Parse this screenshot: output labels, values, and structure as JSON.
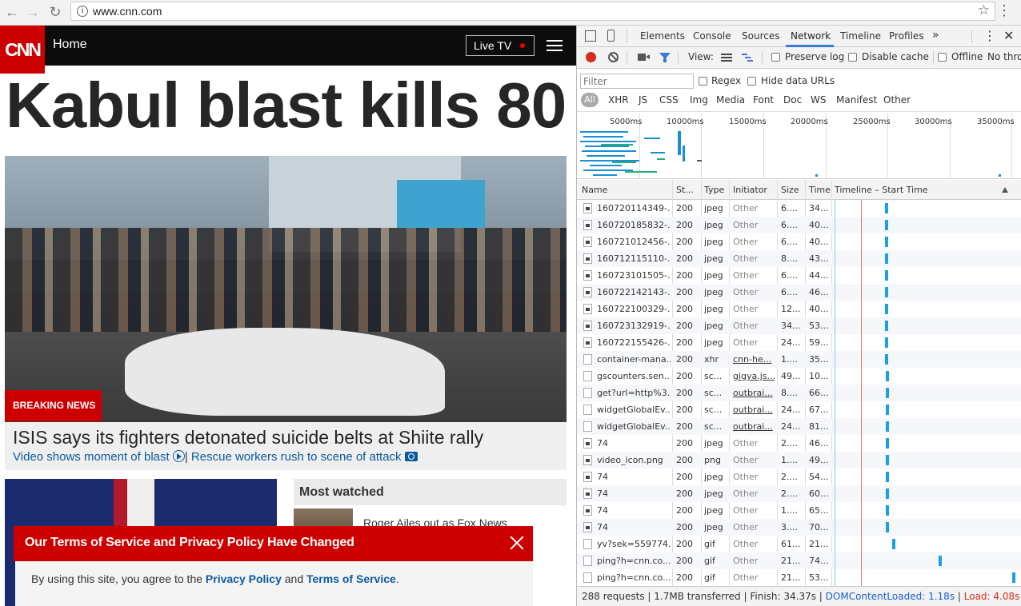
{
  "browser": {
    "url": "www.cnn.com",
    "icons": [
      "back-arrow-icon",
      "forward-arrow-icon",
      "reload-icon",
      "info-icon",
      "star-icon",
      "menu-dots-icon"
    ]
  },
  "cnn": {
    "logo": "CNN",
    "nav_home": "Home",
    "live_tv": "Live TV",
    "headline": "Kabul blast kills 80",
    "breaking_label": "BREAKING NEWS",
    "caption_title": "ISIS says its fighters detonated suicide belts at Shiite rally",
    "link_video": "Video shows moment of blast",
    "link_sep": "|",
    "link_rescue": "Rescue workers rush to scene of attack",
    "most_watched_title": "Most watched",
    "most_watched_story": "Roger Ailes out as Fox News",
    "tos_title": "Our Terms of Service and Privacy Policy Have Changed",
    "tos_prefix": "By using this site, you agree to the ",
    "tos_privacy": "Privacy Policy",
    "tos_and": " and ",
    "tos_terms": "Terms of Service",
    "tos_suffix": ".",
    "accent_color": "#cc0000"
  },
  "devtools": {
    "tabs": [
      "Elements",
      "Console",
      "Sources",
      "Network",
      "Timeline",
      "Profiles"
    ],
    "active_tab": "Network",
    "more_tabs": "»",
    "toolbar": {
      "view_label": "View:",
      "preserve_log": "Preserve log",
      "disable_cache": "Disable cache",
      "offline": "Offline",
      "throttle": "No throt"
    },
    "filter_placeholder": "Filter",
    "regex": "Regex",
    "hide_data_urls": "Hide data URLs",
    "types": [
      "All",
      "XHR",
      "JS",
      "CSS",
      "Img",
      "Media",
      "Font",
      "Doc",
      "WS",
      "Manifest",
      "Other"
    ],
    "overview_ticks": [
      "5000ms",
      "10000ms",
      "15000ms",
      "20000ms",
      "25000ms",
      "30000ms",
      "35000ms"
    ],
    "columns": [
      "Name",
      "St...",
      "Type",
      "Initiator",
      "Size",
      "Time",
      "Timeline – Start Time"
    ],
    "rows": [
      {
        "name": "160720114349-...",
        "status": "200",
        "type": "jpeg",
        "initiator": "Other",
        "size": "6....",
        "time": "34...",
        "img": true
      },
      {
        "name": "160720185832-...",
        "status": "200",
        "type": "jpeg",
        "initiator": "Other",
        "size": "6....",
        "time": "40...",
        "img": true
      },
      {
        "name": "160721012456-...",
        "status": "200",
        "type": "jpeg",
        "initiator": "Other",
        "size": "6....",
        "time": "40...",
        "img": true
      },
      {
        "name": "160712115110-...",
        "status": "200",
        "type": "jpeg",
        "initiator": "Other",
        "size": "8....",
        "time": "43...",
        "img": true
      },
      {
        "name": "160723101505-...",
        "status": "200",
        "type": "jpeg",
        "initiator": "Other",
        "size": "6....",
        "time": "44...",
        "img": true
      },
      {
        "name": "160722142143-...",
        "status": "200",
        "type": "jpeg",
        "initiator": "Other",
        "size": "6....",
        "time": "46...",
        "img": true
      },
      {
        "name": "160722100329-...",
        "status": "200",
        "type": "jpeg",
        "initiator": "Other",
        "size": "12...",
        "time": "40...",
        "img": true
      },
      {
        "name": "160723132919-...",
        "status": "200",
        "type": "jpeg",
        "initiator": "Other",
        "size": "34...",
        "time": "53...",
        "img": true
      },
      {
        "name": "160722155426-...",
        "status": "200",
        "type": "jpeg",
        "initiator": "Other",
        "size": "24...",
        "time": "59...",
        "img": true
      },
      {
        "name": "container-mana...",
        "status": "200",
        "type": "xhr",
        "initiator": "cnn-he...",
        "size": "1....",
        "time": "35...",
        "link": true
      },
      {
        "name": "gscounters.sen...",
        "status": "200",
        "type": "sc...",
        "initiator": "gigya.js...",
        "size": "49...",
        "time": "10...",
        "link": true
      },
      {
        "name": "get?url=http%3...",
        "status": "200",
        "type": "sc...",
        "initiator": "outbrai...",
        "size": "8....",
        "time": "66...",
        "link": true
      },
      {
        "name": "widgetGlobalEv...",
        "status": "200",
        "type": "sc...",
        "initiator": "outbrai...",
        "size": "24...",
        "time": "67...",
        "link": true
      },
      {
        "name": "widgetGlobalEv...",
        "status": "200",
        "type": "sc...",
        "initiator": "outbrai...",
        "size": "24...",
        "time": "81...",
        "link": true
      },
      {
        "name": "74",
        "status": "200",
        "type": "jpeg",
        "initiator": "Other",
        "size": "2....",
        "time": "46...",
        "img": true
      },
      {
        "name": "video_icon.png",
        "status": "200",
        "type": "png",
        "initiator": "Other",
        "size": "1....",
        "time": "49...",
        "img": true
      },
      {
        "name": "74",
        "status": "200",
        "type": "jpeg",
        "initiator": "Other",
        "size": "2....",
        "time": "54...",
        "img": true
      },
      {
        "name": "74",
        "status": "200",
        "type": "jpeg",
        "initiator": "Other",
        "size": "2....",
        "time": "60...",
        "img": true
      },
      {
        "name": "74",
        "status": "200",
        "type": "jpeg",
        "initiator": "Other",
        "size": "1....",
        "time": "65...",
        "img": true
      },
      {
        "name": "74",
        "status": "200",
        "type": "jpeg",
        "initiator": "Other",
        "size": "3....",
        "time": "70...",
        "img": true
      },
      {
        "name": "yv?sek=559774...",
        "status": "200",
        "type": "gif",
        "initiator": "Other",
        "size": "61...",
        "time": "21..."
      },
      {
        "name": "ping?h=cnn.co...",
        "status": "200",
        "type": "gif",
        "initiator": "Other",
        "size": "21...",
        "time": "74..."
      },
      {
        "name": "ping?h=cnn.co...",
        "status": "200",
        "type": "gif",
        "initiator": "Other",
        "size": "21...",
        "time": "53..."
      }
    ],
    "status_bar": {
      "requests": "288 requests",
      "transferred": "1.7MB transferred",
      "finish": "Finish: 34.37s",
      "dcl": "DOMContentLoaded: 1.18s",
      "load": "Load: 4.08s",
      "sep": "|"
    }
  }
}
